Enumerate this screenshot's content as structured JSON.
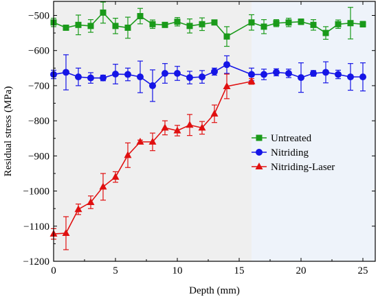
{
  "chart_data": {
    "type": "line",
    "title": "",
    "xlabel": "Depth (mm)",
    "ylabel": "Residual stress (MPa)",
    "xlim": [
      0,
      26
    ],
    "ylim": [
      -1200,
      -460
    ],
    "xticks": [
      0,
      5,
      10,
      15,
      20,
      25
    ],
    "xtick_labels": [
      "0",
      "5",
      "10",
      "15",
      "20",
      "25"
    ],
    "yticks": [
      -1200,
      -1100,
      -1000,
      -900,
      -800,
      -700,
      -600,
      -500
    ],
    "ytick_labels": [
      "−1200",
      "−1100",
      "−1000",
      "−900",
      "−800",
      "−700",
      "−600",
      "−500"
    ],
    "grid": false,
    "legend_position": "right-middle",
    "shaded_regions": [
      {
        "x_from": 0,
        "x_to": 16,
        "color": "#efefef"
      },
      {
        "x_from": 16,
        "x_to": 26,
        "color": "#eef3fa"
      }
    ],
    "series": [
      {
        "name": "Untreated",
        "color": "#1a9a1a",
        "marker": "square",
        "x": [
          0,
          1,
          2,
          3,
          4,
          5,
          6,
          7,
          8,
          9,
          10,
          11,
          12,
          13,
          14,
          16,
          17,
          18,
          19,
          20,
          21,
          22,
          23,
          24,
          25
        ],
        "y": [
          -520,
          -535,
          -527,
          -530,
          -492,
          -530,
          -535,
          -502,
          -525,
          -527,
          -518,
          -530,
          -525,
          -520,
          -560,
          -520,
          -532,
          -522,
          -520,
          -518,
          -527,
          -550,
          -525,
          -522,
          -525
        ],
        "err": [
          12,
          4,
          28,
          18,
          30,
          22,
          30,
          22,
          12,
          5,
          12,
          20,
          18,
          5,
          28,
          22,
          20,
          10,
          12,
          8,
          15,
          18,
          12,
          45,
          8
        ]
      },
      {
        "name": "Nitriding",
        "color": "#1515e6",
        "marker": "circle",
        "x": [
          0,
          1,
          2,
          3,
          4,
          5,
          6,
          7,
          8,
          9,
          10,
          11,
          12,
          13,
          14,
          16,
          17,
          18,
          19,
          20,
          21,
          22,
          23,
          24,
          25
        ],
        "y": [
          -668,
          -662,
          -675,
          -678,
          -678,
          -667,
          -668,
          -675,
          -700,
          -665,
          -665,
          -677,
          -675,
          -660,
          -640,
          -668,
          -668,
          -662,
          -665,
          -677,
          -665,
          -662,
          -668,
          -675,
          -675
        ],
        "err": [
          12,
          50,
          25,
          15,
          8,
          28,
          18,
          45,
          45,
          28,
          20,
          18,
          18,
          10,
          25,
          18,
          15,
          10,
          12,
          42,
          8,
          30,
          12,
          38,
          40
        ]
      },
      {
        "name": "Nitriding-Laser",
        "color": "#e01010",
        "marker": "triangle",
        "x": [
          0,
          1,
          2,
          3,
          4,
          5,
          6,
          7,
          8,
          9,
          10,
          11,
          12,
          13,
          14,
          16
        ],
        "y": [
          -1122,
          -1120,
          -1052,
          -1032,
          -988,
          -960,
          -898,
          -860,
          -860,
          -820,
          -828,
          -812,
          -820,
          -780,
          -702,
          -688
        ],
        "err": [
          15,
          47,
          15,
          18,
          38,
          15,
          35,
          5,
          25,
          20,
          15,
          30,
          18,
          25,
          35,
          8
        ]
      }
    ]
  }
}
